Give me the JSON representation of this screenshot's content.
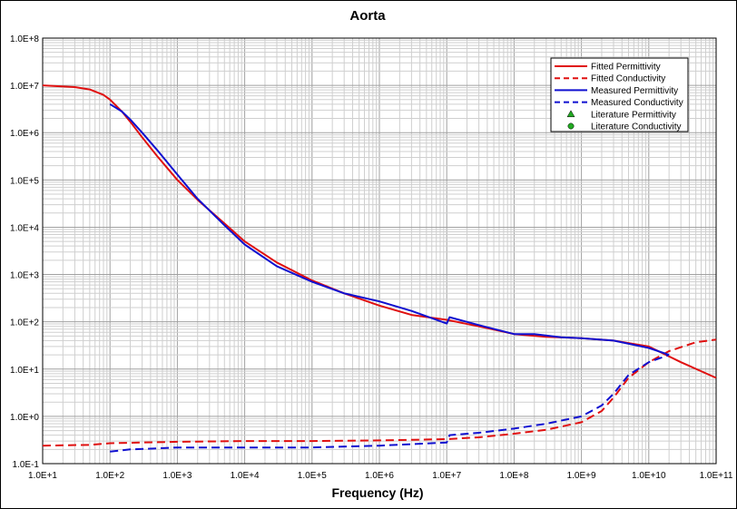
{
  "chart_data": {
    "type": "line",
    "title": "Aorta",
    "xlabel": "Frequency (Hz)",
    "ylabel": "",
    "x_scale": "log",
    "y_scale": "log",
    "xlim": [
      10,
      100000000000
    ],
    "ylim": [
      0.1,
      100000000
    ],
    "x_tick_labels": [
      "1.0E+1",
      "1.0E+2",
      "1.0E+3",
      "1.0E+4",
      "1.0E+5",
      "1.0E+6",
      "1.0E+7",
      "1.0E+8",
      "1.0E+9",
      "1.0E+10",
      "1.0E+11"
    ],
    "y_tick_labels": [
      "1.0E-1",
      "1.0E+0",
      "1.0E+1",
      "1.0E+2",
      "1.0E+3",
      "1.0E+4",
      "1.0E+5",
      "1.0E+6",
      "1.0E+7",
      "1.0E+8"
    ],
    "grid": true,
    "legend_position": "top-right",
    "legend": [
      {
        "label": "Fitted Permittivity",
        "style": "solid",
        "color": "#e01010"
      },
      {
        "label": "Fitted Conductivity",
        "style": "dashed",
        "color": "#e01010"
      },
      {
        "label": "Measured Permittivity",
        "style": "solid",
        "color": "#1010d0"
      },
      {
        "label": "Measured Conductivity",
        "style": "dashed",
        "color": "#1010d0"
      },
      {
        "label": "Literature Permittivity",
        "style": "triangle",
        "color": "#22aa22"
      },
      {
        "label": "Literature Conductivity",
        "style": "circle",
        "color": "#22aa22"
      }
    ],
    "series": [
      {
        "name": "Fitted Permittivity",
        "color": "#e01010",
        "dash": false,
        "x": [
          10,
          30,
          50,
          80,
          100,
          150,
          200,
          300,
          500,
          1000,
          2000,
          5000,
          10000,
          30000,
          100000,
          300000,
          1000000,
          3000000,
          10000000,
          30000000,
          100000000,
          300000000,
          1000000000,
          3000000000,
          10000000000,
          30000000000,
          100000000000
        ],
        "y": [
          10000000,
          9200000,
          8200000,
          6300000,
          5000000,
          2800000,
          1700000,
          800000,
          320000,
          100000,
          38000,
          12000,
          5000,
          1800,
          750,
          400,
          220,
          140,
          110,
          80,
          55,
          48,
          45,
          40,
          30,
          14,
          6.5
        ]
      },
      {
        "name": "Fitted Conductivity",
        "color": "#e01010",
        "dash": true,
        "x": [
          10,
          50,
          100,
          1000,
          10000,
          100000,
          1000000,
          10000000,
          30000000,
          100000000,
          300000000,
          1000000000,
          2000000000,
          3000000000,
          5000000000,
          10000000000,
          20000000000,
          50000000000,
          100000000000
        ],
        "y": [
          0.24,
          0.25,
          0.27,
          0.29,
          0.3,
          0.3,
          0.31,
          0.33,
          0.36,
          0.43,
          0.52,
          0.75,
          1.3,
          2.5,
          6.5,
          14,
          24,
          37,
          42
        ]
      },
      {
        "name": "Measured Permittivity",
        "color": "#1010d0",
        "dash": false,
        "x": [
          100,
          150,
          200,
          300,
          500,
          1000,
          2000,
          5000,
          10000,
          30000,
          100000,
          300000,
          1000000,
          3000000,
          10000000,
          11000000,
          30000000,
          100000000,
          200000000,
          500000000,
          1000000000,
          3000000000,
          10000000000,
          20000000000
        ],
        "y": [
          4000000,
          2800000,
          1900000,
          1000000,
          430000,
          130000,
          40000,
          11000,
          4300,
          1500,
          700,
          400,
          270,
          170,
          92,
          125,
          85,
          55,
          55,
          47,
          45,
          40,
          28,
          20
        ]
      },
      {
        "name": "Measured Conductivity",
        "color": "#1010d0",
        "dash": true,
        "x": [
          100,
          200,
          500,
          1000,
          10000,
          100000,
          1000000,
          10000000,
          11000000,
          30000000,
          100000000,
          300000000,
          1000000000,
          2000000000,
          3000000000,
          5000000000,
          10000000000,
          20000000000
        ],
        "y": [
          0.18,
          0.2,
          0.21,
          0.22,
          0.22,
          0.22,
          0.24,
          0.28,
          0.4,
          0.45,
          0.55,
          0.7,
          1.0,
          1.7,
          3.0,
          7.5,
          14,
          20
        ]
      }
    ]
  }
}
